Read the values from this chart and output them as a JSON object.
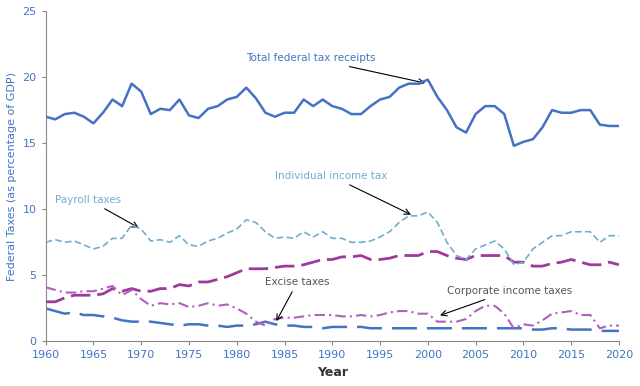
{
  "title": "",
  "xlabel": "Year",
  "ylabel": "Federal Taxes (as percentage of GDP)",
  "xlim": [
    1960,
    2020
  ],
  "ylim": [
    0,
    25
  ],
  "yticks": [
    0,
    5,
    10,
    15,
    20,
    25
  ],
  "xticks": [
    1960,
    1965,
    1970,
    1975,
    1980,
    1985,
    1990,
    1995,
    2000,
    2005,
    2010,
    2015,
    2020
  ],
  "total_federal": {
    "years": [
      1960,
      1961,
      1962,
      1963,
      1964,
      1965,
      1966,
      1967,
      1968,
      1969,
      1970,
      1971,
      1972,
      1973,
      1974,
      1975,
      1976,
      1977,
      1978,
      1979,
      1980,
      1981,
      1982,
      1983,
      1984,
      1985,
      1986,
      1987,
      1988,
      1989,
      1990,
      1991,
      1992,
      1993,
      1994,
      1995,
      1996,
      1997,
      1998,
      1999,
      2000,
      2001,
      2002,
      2003,
      2004,
      2005,
      2006,
      2007,
      2008,
      2009,
      2010,
      2011,
      2012,
      2013,
      2014,
      2015,
      2016,
      2017,
      2018,
      2019,
      2020
    ],
    "values": [
      17.0,
      16.8,
      17.2,
      17.3,
      17.0,
      16.5,
      17.3,
      18.3,
      17.8,
      19.5,
      18.9,
      17.2,
      17.6,
      17.5,
      18.3,
      17.1,
      16.9,
      17.6,
      17.8,
      18.3,
      18.5,
      19.2,
      18.4,
      17.3,
      17.0,
      17.3,
      17.3,
      18.3,
      17.8,
      18.3,
      17.8,
      17.6,
      17.2,
      17.2,
      17.8,
      18.3,
      18.5,
      19.2,
      19.5,
      19.5,
      19.8,
      18.5,
      17.5,
      16.2,
      15.8,
      17.2,
      17.8,
      17.8,
      17.2,
      14.8,
      15.1,
      15.3,
      16.2,
      17.5,
      17.3,
      17.3,
      17.5,
      17.5,
      16.4,
      16.3,
      16.3
    ],
    "color": "#4472c4",
    "linewidth": 1.8,
    "label": "Total federal tax receipts"
  },
  "individual_income": {
    "years": [
      1960,
      1961,
      1962,
      1963,
      1964,
      1965,
      1966,
      1967,
      1968,
      1969,
      1970,
      1971,
      1972,
      1973,
      1974,
      1975,
      1976,
      1977,
      1978,
      1979,
      1980,
      1981,
      1982,
      1983,
      1984,
      1985,
      1986,
      1987,
      1988,
      1989,
      1990,
      1991,
      1992,
      1993,
      1994,
      1995,
      1996,
      1997,
      1998,
      1999,
      2000,
      2001,
      2002,
      2003,
      2004,
      2005,
      2006,
      2007,
      2008,
      2009,
      2010,
      2011,
      2012,
      2013,
      2014,
      2015,
      2016,
      2017,
      2018,
      2019,
      2020
    ],
    "values": [
      7.5,
      7.7,
      7.5,
      7.6,
      7.3,
      7.0,
      7.2,
      7.8,
      7.8,
      8.8,
      8.5,
      7.6,
      7.7,
      7.5,
      8.0,
      7.3,
      7.2,
      7.6,
      7.8,
      8.2,
      8.5,
      9.2,
      9.0,
      8.3,
      7.8,
      7.9,
      7.8,
      8.3,
      7.9,
      8.3,
      7.8,
      7.8,
      7.5,
      7.5,
      7.6,
      7.9,
      8.3,
      9.0,
      9.5,
      9.5,
      9.8,
      9.0,
      7.5,
      6.5,
      6.2,
      7.0,
      7.3,
      7.6,
      7.0,
      5.8,
      6.0,
      7.0,
      7.5,
      8.0,
      8.0,
      8.3,
      8.3,
      8.3,
      7.5,
      8.0,
      8.0
    ],
    "color": "#70aece",
    "linewidth": 1.2,
    "label": "Individual income tax"
  },
  "payroll": {
    "years": [
      1960,
      1961,
      1962,
      1963,
      1964,
      1965,
      1966,
      1967,
      1968,
      1969,
      1970,
      1971,
      1972,
      1973,
      1974,
      1975,
      1976,
      1977,
      1978,
      1979,
      1980,
      1981,
      1982,
      1983,
      1984,
      1985,
      1986,
      1987,
      1988,
      1989,
      1990,
      1991,
      1992,
      1993,
      1994,
      1995,
      1996,
      1997,
      1998,
      1999,
      2000,
      2001,
      2002,
      2003,
      2004,
      2005,
      2006,
      2007,
      2008,
      2009,
      2010,
      2011,
      2012,
      2013,
      2014,
      2015,
      2016,
      2017,
      2018,
      2019,
      2020
    ],
    "values": [
      3.0,
      3.0,
      3.3,
      3.5,
      3.5,
      3.5,
      3.6,
      4.0,
      3.8,
      4.0,
      3.8,
      3.8,
      4.0,
      4.0,
      4.3,
      4.2,
      4.5,
      4.5,
      4.7,
      4.9,
      5.2,
      5.5,
      5.5,
      5.5,
      5.6,
      5.7,
      5.7,
      5.8,
      6.0,
      6.2,
      6.2,
      6.4,
      6.4,
      6.5,
      6.2,
      6.2,
      6.3,
      6.5,
      6.5,
      6.5,
      6.8,
      6.8,
      6.5,
      6.3,
      6.2,
      6.5,
      6.5,
      6.5,
      6.5,
      6.0,
      6.0,
      5.7,
      5.7,
      5.9,
      6.0,
      6.2,
      6.0,
      5.8,
      5.8,
      6.0,
      5.8
    ],
    "color": "#9e3a9e",
    "linewidth": 2.0,
    "label": "Payroll taxes"
  },
  "excise": {
    "years": [
      1960,
      1961,
      1962,
      1963,
      1964,
      1965,
      1966,
      1967,
      1968,
      1969,
      1970,
      1971,
      1972,
      1973,
      1974,
      1975,
      1976,
      1977,
      1978,
      1979,
      1980,
      1981,
      1982,
      1983,
      1984,
      1985,
      1986,
      1987,
      1988,
      1989,
      1990,
      1991,
      1992,
      1993,
      1994,
      1995,
      1996,
      1997,
      1998,
      1999,
      2000,
      2001,
      2002,
      2003,
      2004,
      2005,
      2006,
      2007,
      2008,
      2009,
      2010,
      2011,
      2012,
      2013,
      2014,
      2015,
      2016,
      2017,
      2018,
      2019,
      2020
    ],
    "values": [
      2.5,
      2.3,
      2.1,
      2.2,
      2.0,
      2.0,
      1.9,
      1.8,
      1.6,
      1.5,
      1.5,
      1.5,
      1.4,
      1.3,
      1.2,
      1.3,
      1.3,
      1.2,
      1.2,
      1.1,
      1.2,
      1.2,
      1.3,
      1.5,
      1.3,
      1.2,
      1.2,
      1.1,
      1.1,
      1.0,
      1.1,
      1.1,
      1.1,
      1.1,
      1.0,
      1.0,
      1.0,
      1.0,
      1.0,
      1.0,
      1.0,
      1.0,
      1.0,
      1.0,
      1.0,
      1.0,
      1.0,
      1.0,
      1.0,
      1.0,
      1.0,
      0.9,
      0.9,
      1.0,
      1.0,
      0.9,
      0.9,
      0.9,
      0.8,
      0.8,
      0.8
    ],
    "color": "#4472c4",
    "linewidth": 1.8,
    "label": "Excise taxes"
  },
  "corporate": {
    "years": [
      1960,
      1961,
      1962,
      1963,
      1964,
      1965,
      1966,
      1967,
      1968,
      1969,
      1970,
      1971,
      1972,
      1973,
      1974,
      1975,
      1976,
      1977,
      1978,
      1979,
      1980,
      1981,
      1982,
      1983,
      1984,
      1985,
      1986,
      1987,
      1988,
      1989,
      1990,
      1991,
      1992,
      1993,
      1994,
      1995,
      1996,
      1997,
      1998,
      1999,
      2000,
      2001,
      2002,
      2003,
      2004,
      2005,
      2006,
      2007,
      2008,
      2009,
      2010,
      2011,
      2012,
      2013,
      2014,
      2015,
      2016,
      2017,
      2018,
      2019,
      2020
    ],
    "values": [
      4.1,
      3.9,
      3.7,
      3.7,
      3.8,
      3.8,
      4.0,
      4.2,
      3.5,
      3.9,
      3.2,
      2.7,
      2.9,
      2.8,
      2.9,
      2.6,
      2.7,
      2.9,
      2.7,
      2.8,
      2.5,
      2.1,
      1.5,
      1.2,
      1.7,
      1.8,
      1.8,
      1.9,
      2.0,
      2.0,
      2.0,
      1.9,
      1.9,
      2.0,
      1.9,
      2.0,
      2.2,
      2.3,
      2.3,
      2.1,
      2.1,
      1.5,
      1.5,
      1.5,
      1.7,
      2.3,
      2.7,
      2.7,
      2.1,
      1.0,
      1.3,
      1.2,
      1.6,
      2.1,
      2.2,
      2.3,
      2.0,
      2.0,
      1.0,
      1.2,
      1.2
    ],
    "color": "#b05fbf",
    "linewidth": 1.5,
    "label": "Corporate income taxes"
  }
}
